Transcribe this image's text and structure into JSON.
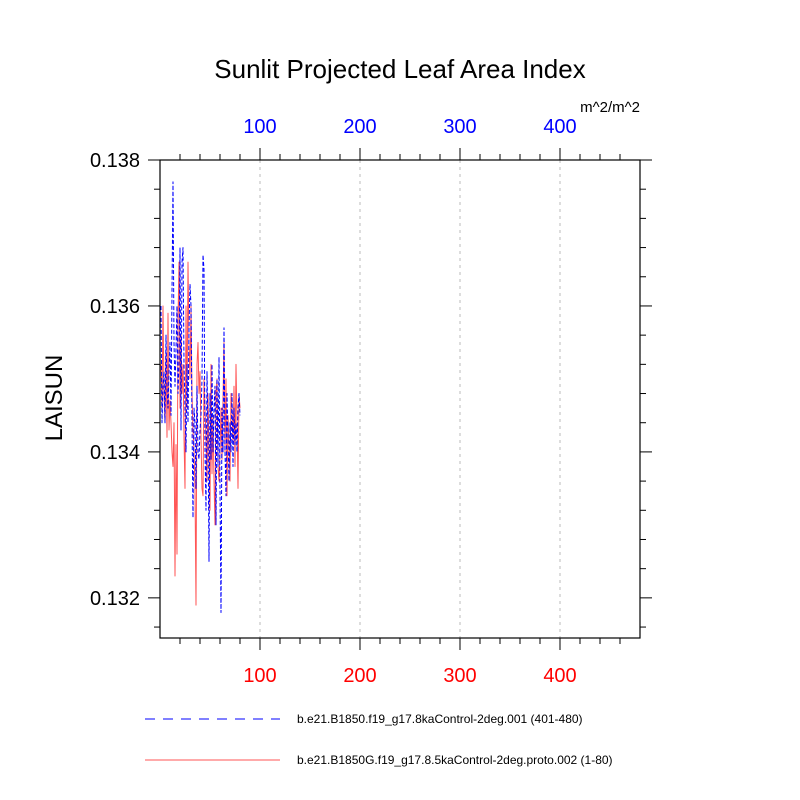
{
  "chart_data": {
    "type": "line",
    "title": "Sunlit Projected Leaf Area Index",
    "units": "m^2/m^2",
    "ylabel": "LAISUN",
    "xlabel": "",
    "xlim": [
      0,
      480
    ],
    "ylim": [
      0.13145,
      0.138
    ],
    "x_ticks": [
      100,
      200,
      300,
      400
    ],
    "x_tick_labels": [
      "100",
      "200",
      "300",
      "400"
    ],
    "y_ticks": [
      0.132,
      0.134,
      0.136,
      0.138
    ],
    "y_tick_labels": [
      "0.132",
      "0.134",
      "0.136",
      "0.138"
    ],
    "grid": "vertical dashed at x ticks",
    "legend_position": "bottom",
    "colors": {
      "top_axis": "#0000ff",
      "bottom_axis": "#ff0000",
      "grid": "#bbbbbb",
      "frame": "#000000"
    },
    "series": [
      {
        "name": "b.e21.B1850.f19_g17.8kaControl-2deg.001 (401-480)",
        "color": "#0000ff",
        "dash": "dashed",
        "x_axis": "top",
        "values": [
          0.136,
          0.1344,
          0.1349,
          0.1351,
          0.1344,
          0.1356,
          0.1349,
          0.1346,
          0.1351,
          0.1355,
          0.1345,
          0.1362,
          0.1377,
          0.1355,
          0.1349,
          0.1354,
          0.136,
          0.1348,
          0.1352,
          0.1368,
          0.1343,
          0.1366,
          0.1368,
          0.1352,
          0.1346,
          0.134,
          0.1352,
          0.1344,
          0.1357,
          0.1363,
          0.136,
          0.1344,
          0.1331,
          0.1346,
          0.1344,
          0.1335,
          0.1349,
          0.134,
          0.1339,
          0.1343,
          0.1345,
          0.135,
          0.1367,
          0.1365,
          0.134,
          0.1332,
          0.1351,
          0.1343,
          0.1325,
          0.1348,
          0.1339,
          0.1352,
          0.134,
          0.1346,
          0.1349,
          0.133,
          0.135,
          0.1338,
          0.1353,
          0.1335,
          0.1318,
          0.1346,
          0.134,
          0.1357,
          0.134,
          0.1334,
          0.1348,
          0.1342,
          0.1336,
          0.1344,
          0.134,
          0.1348,
          0.1338,
          0.1346,
          0.1341,
          0.1344,
          0.134,
          0.1346,
          0.1348,
          0.1345
        ]
      },
      {
        "name": "b.e21.B1850G.f19_g17.8.5kaControl-2deg.proto.002 (1-80)",
        "color": "#ff5555",
        "dash": "solid",
        "x_axis": "bottom",
        "values": [
          0.1352,
          0.1346,
          0.136,
          0.1348,
          0.1344,
          0.1354,
          0.1342,
          0.1359,
          0.1343,
          0.1347,
          0.1344,
          0.134,
          0.1338,
          0.1344,
          0.1323,
          0.1341,
          0.1326,
          0.1358,
          0.1366,
          0.1346,
          0.1356,
          0.1348,
          0.1352,
          0.1342,
          0.1335,
          0.136,
          0.1346,
          0.1366,
          0.1355,
          0.135,
          0.136,
          0.1348,
          0.1343,
          0.134,
          0.1335,
          0.1319,
          0.1352,
          0.1355,
          0.1348,
          0.1351,
          0.1342,
          0.1335,
          0.1334,
          0.135,
          0.1346,
          0.1342,
          0.1336,
          0.1348,
          0.134,
          0.1332,
          0.1352,
          0.1337,
          0.1345,
          0.1336,
          0.133,
          0.1348,
          0.135,
          0.1338,
          0.1336,
          0.134,
          0.1346,
          0.1339,
          0.1347,
          0.1355,
          0.134,
          0.135,
          0.1334,
          0.1345,
          0.1341,
          0.1336,
          0.1348,
          0.1346,
          0.1341,
          0.1349,
          0.1338,
          0.1352,
          0.1344,
          0.1335,
          0.1348,
          0.1346
        ]
      }
    ]
  }
}
